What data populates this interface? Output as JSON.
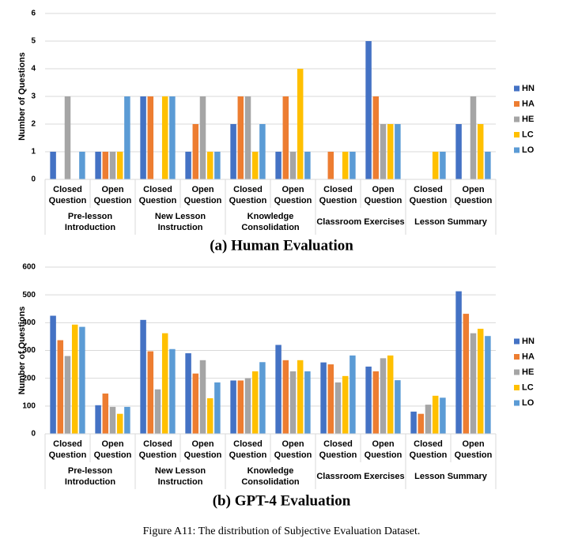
{
  "chart_data": [
    {
      "type": "bar",
      "title": "(a) Human Evaluation",
      "y_label": "Number of Questions",
      "categories": [
        "Closed Question",
        "Open Question",
        "Closed Question",
        "Open Question",
        "Closed Question",
        "Open Question",
        "Closed Question",
        "Open Question",
        "Closed Question",
        "Open Question"
      ],
      "groups": [
        "Pre-lesson Introduction",
        "New Lesson Instruction",
        "Knowledge Consolidation",
        "Classroom Exercises",
        "Lesson Summary"
      ],
      "series": [
        {
          "name": "HN",
          "color": "#4472c4",
          "values": [
            1,
            1,
            3,
            1,
            2,
            1,
            0,
            5,
            0,
            2
          ]
        },
        {
          "name": "HA",
          "color": "#ed7d31",
          "values": [
            0,
            1,
            3,
            2,
            3,
            3,
            1,
            3,
            0,
            0
          ]
        },
        {
          "name": "HE",
          "color": "#a5a5a5",
          "values": [
            3,
            1,
            0,
            3,
            3,
            1,
            0,
            2,
            0,
            3
          ]
        },
        {
          "name": "LC",
          "color": "#ffc000",
          "values": [
            0,
            1,
            3,
            1,
            1,
            4,
            1,
            2,
            1,
            2
          ]
        },
        {
          "name": "LO",
          "color": "#5b9bd5",
          "values": [
            1,
            3,
            3,
            1,
            2,
            1,
            1,
            2,
            1,
            1
          ]
        }
      ],
      "ylim": [
        0,
        6
      ],
      "yticks": [
        0,
        1,
        2,
        3,
        4,
        5,
        6
      ],
      "grid": true,
      "legend": "right"
    },
    {
      "type": "bar",
      "title": "(b) GPT-4 Evaluation",
      "y_label": "Number of Questions",
      "categories": [
        "Closed Question",
        "Open Question",
        "Closed Question",
        "Open Question",
        "Closed Question",
        "Open Question",
        "Closed Question",
        "Open Question",
        "Closed Question",
        "Open Question"
      ],
      "groups": [
        "Pre-lesson Introduction",
        "New Lesson Instruction",
        "Knowledge Consolidation",
        "Classroom Exercises",
        "Lesson Summary"
      ],
      "series": [
        {
          "name": "HN",
          "color": "#4472c4",
          "values": [
            425,
            103,
            410,
            290,
            192,
            320,
            257,
            242,
            80,
            513
          ]
        },
        {
          "name": "HA",
          "color": "#ed7d31",
          "values": [
            337,
            145,
            297,
            217,
            192,
            265,
            250,
            225,
            72,
            432
          ]
        },
        {
          "name": "HE",
          "color": "#a5a5a5",
          "values": [
            280,
            97,
            160,
            265,
            200,
            225,
            185,
            272,
            105,
            362
          ]
        },
        {
          "name": "LC",
          "color": "#ffc000",
          "values": [
            393,
            72,
            362,
            128,
            225,
            265,
            208,
            282,
            137,
            378
          ]
        },
        {
          "name": "LO",
          "color": "#5b9bd5",
          "values": [
            385,
            97,
            305,
            185,
            258,
            225,
            282,
            193,
            130,
            352
          ]
        }
      ],
      "ylim": [
        0,
        600
      ],
      "yticks": [
        0,
        100,
        200,
        300,
        400,
        500,
        600
      ],
      "grid": true,
      "legend": "right"
    }
  ],
  "caption": "Figure A11: The distribution of Subjective Evaluation Dataset."
}
